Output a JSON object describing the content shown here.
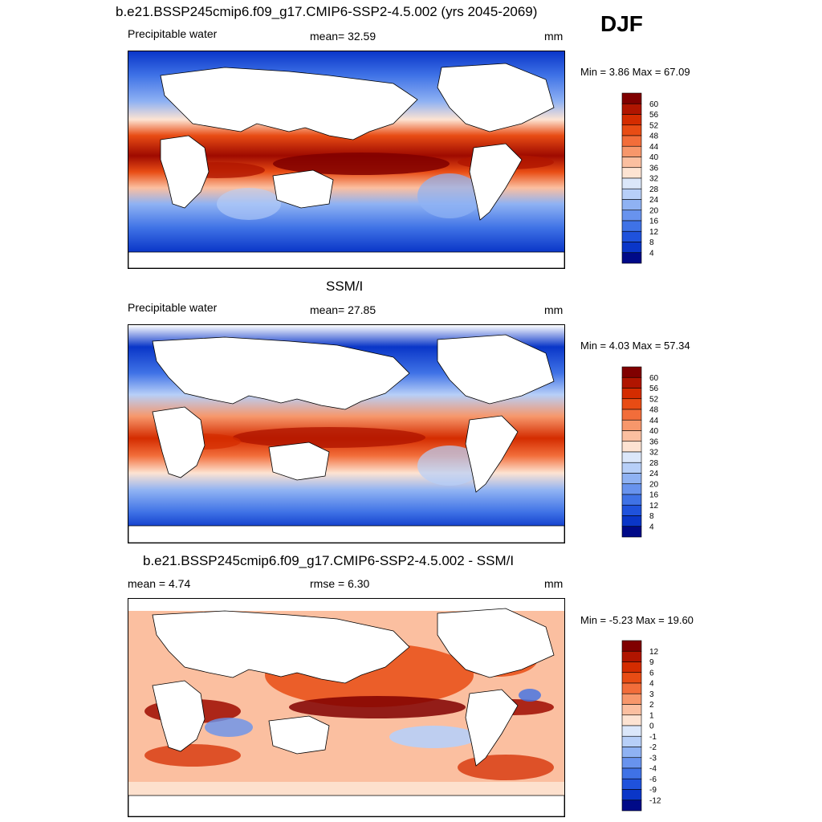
{
  "season": "DJF",
  "panels": [
    {
      "title": "b.e21.BSSP245cmip6.f09_g17.CMIP6-SSP2-4.5.002 (yrs 2045-2069)",
      "left_label": "Precipitable water",
      "center_label": "mean=  32.59",
      "units": "mm",
      "minmax": "Min =   3.86 Max =  67.09",
      "palette": "sequential"
    },
    {
      "title": "SSM/I",
      "left_label": "Precipitable water",
      "center_label": "mean=  27.85",
      "units": "mm",
      "minmax": "Min =   4.03 Max =  57.34",
      "palette": "sequential"
    },
    {
      "title": "b.e21.BSSP245cmip6.f09_g17.CMIP6-SSP2-4.5.002 - SSM/I",
      "left_label": "mean =   4.74",
      "center_label": "rmse =   6.30",
      "units": "mm",
      "minmax": "Min =  -5.23 Max =  19.60",
      "palette": "difference"
    }
  ],
  "colorbars": {
    "sequential": {
      "labels": [
        "60",
        "56",
        "52",
        "48",
        "44",
        "40",
        "36",
        "32",
        "28",
        "24",
        "20",
        "16",
        "12",
        "8",
        "4"
      ],
      "colors": [
        "#800000",
        "#b01500",
        "#d42c00",
        "#e84c14",
        "#f26d3a",
        "#f7976b",
        "#fbbfa0",
        "#fde3d2",
        "#dbe7fa",
        "#b7cff8",
        "#8fb2f3",
        "#6893ee",
        "#3f72e6",
        "#1f52dc",
        "#0a36c8",
        "#000a88"
      ]
    },
    "difference": {
      "labels": [
        "12",
        "9",
        "6",
        "4",
        "3",
        "2",
        "1",
        "0",
        "-1",
        "-2",
        "-3",
        "-4",
        "-6",
        "-9",
        "-12"
      ],
      "colors": [
        "#800000",
        "#b01500",
        "#d42c00",
        "#e84c14",
        "#f26d3a",
        "#f7976b",
        "#fbbfa0",
        "#fde3d2",
        "#dbe7fa",
        "#b7cff8",
        "#8fb2f3",
        "#6893ee",
        "#3f72e6",
        "#1f52dc",
        "#0a36c8",
        "#000a88"
      ]
    }
  }
}
